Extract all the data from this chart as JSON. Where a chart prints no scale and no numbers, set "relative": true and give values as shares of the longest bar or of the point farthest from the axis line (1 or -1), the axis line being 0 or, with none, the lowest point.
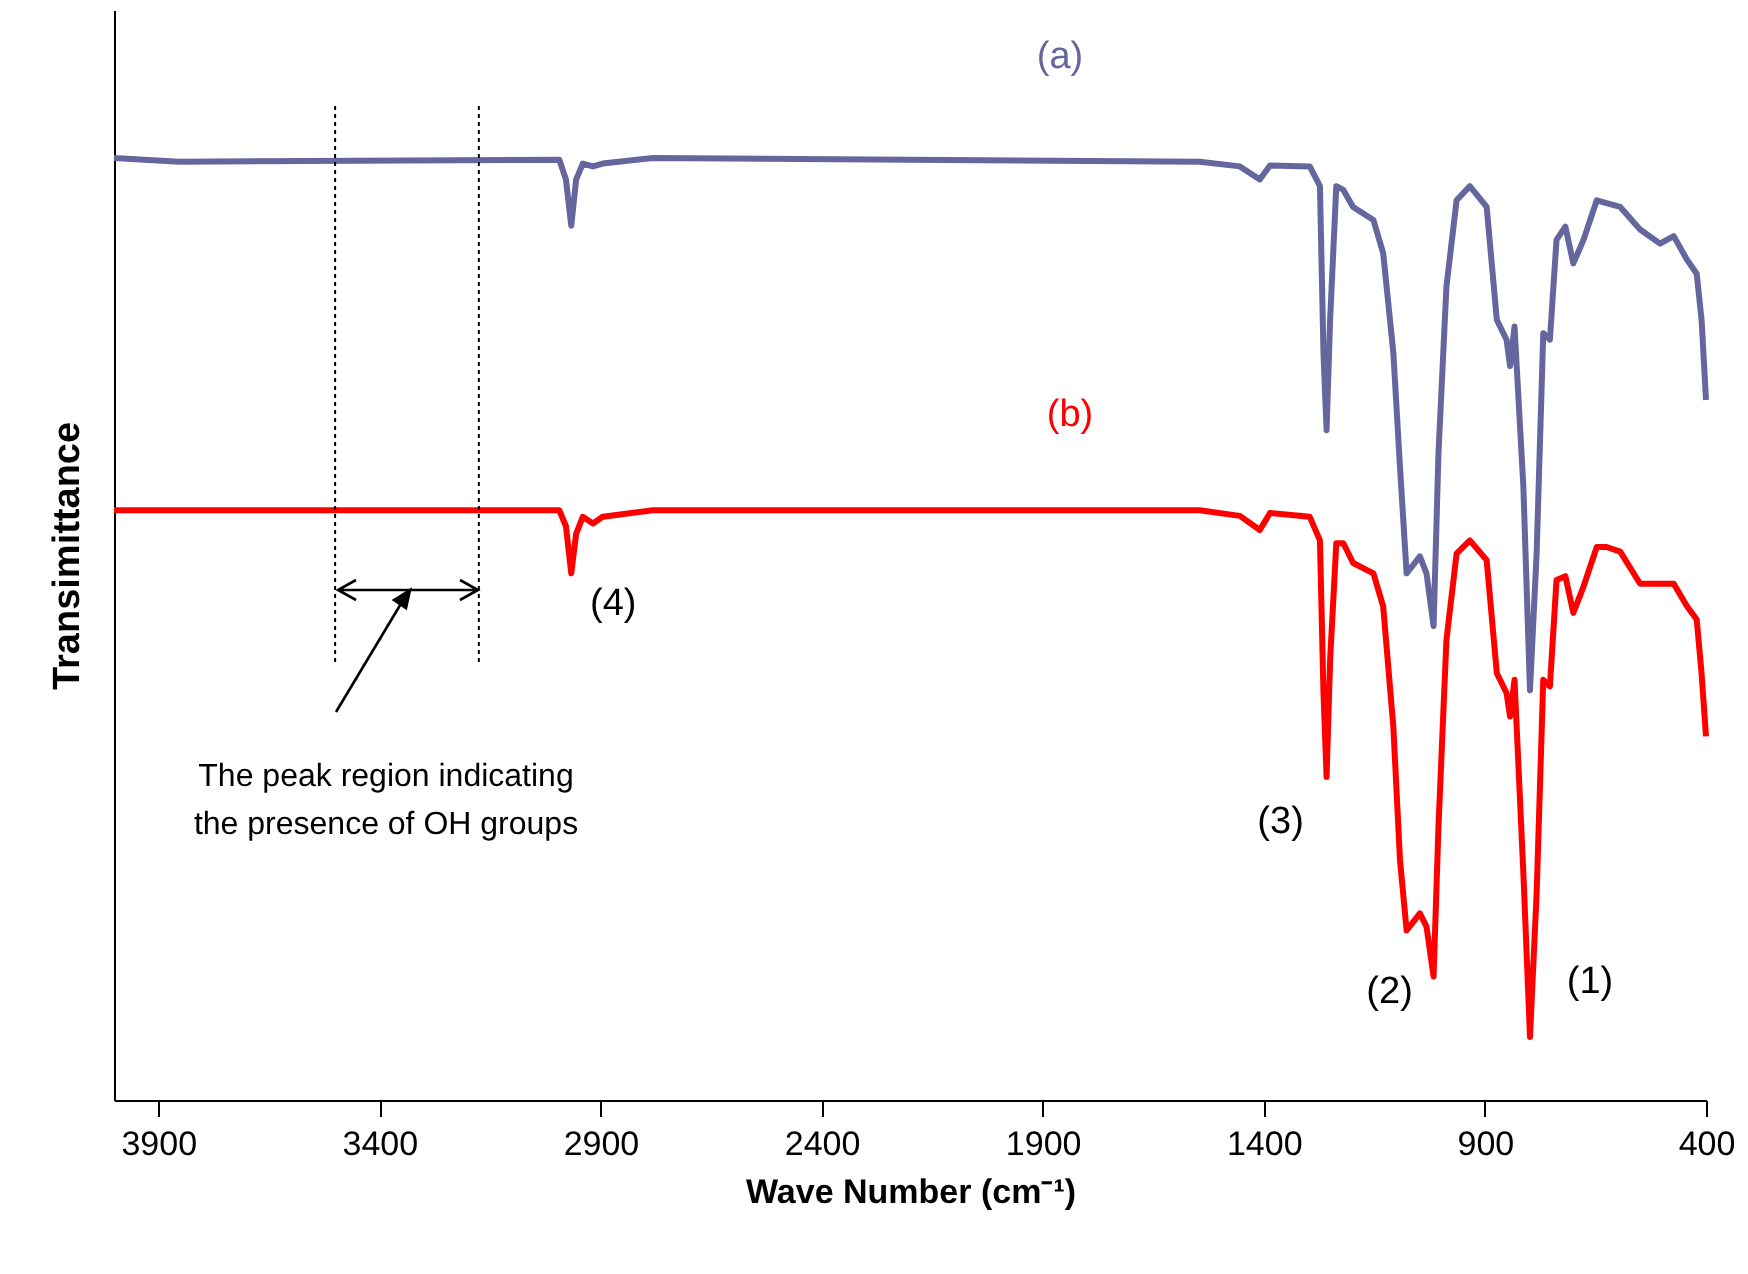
{
  "chart_data": {
    "type": "line",
    "relative": true,
    "xlabel": "Wave Number  (cm⁻¹)",
    "ylabel": "Transimittance",
    "xlim": [
      4000,
      400
    ],
    "xticks": [
      3900,
      3400,
      2900,
      2400,
      1900,
      1400,
      900,
      400
    ],
    "tick_labels": "x",
    "grid": false,
    "line_style": "solid",
    "marker": "none",
    "x": [
      4000,
      3853,
      2993,
      2978,
      2966,
      2955,
      2940,
      2917,
      2895,
      2782,
      1545,
      1454,
      1409,
      1386,
      1296,
      1273,
      1265,
      1258,
      1250,
      1236,
      1220,
      1198,
      1152,
      1130,
      1107,
      1092,
      1077,
      1047,
      1032,
      1016,
      1005,
      987,
      964,
      934,
      896,
      873,
      851,
      843,
      833,
      813,
      798,
      783,
      768,
      753,
      738,
      718,
      700,
      677,
      647,
      625,
      594,
      549,
      504,
      473,
      443,
      421,
      410,
      400
    ],
    "series": [
      {
        "name": "(a)",
        "color": "#66669e",
        "values": [
          1.0,
          0.996,
          0.998,
          0.977,
          0.928,
          0.977,
          0.994,
          0.991,
          0.994,
          1.0,
          0.996,
          0.991,
          0.977,
          0.992,
          0.991,
          0.97,
          0.793,
          0.711,
          0.828,
          0.97,
          0.966,
          0.948,
          0.934,
          0.899,
          0.793,
          0.672,
          0.559,
          0.577,
          0.559,
          0.503,
          0.686,
          0.863,
          0.955,
          0.97,
          0.948,
          0.828,
          0.807,
          0.779,
          0.821,
          0.651,
          0.435,
          0.58,
          0.814,
          0.807,
          0.913,
          0.927,
          0.888,
          0.913,
          0.955,
          0.952,
          0.948,
          0.924,
          0.909,
          0.917,
          0.892,
          0.877,
          0.828,
          0.743
        ]
      },
      {
        "name": "(b)",
        "color": "#ff0000",
        "values": [
          0.626,
          0.626,
          0.626,
          0.609,
          0.559,
          0.601,
          0.619,
          0.612,
          0.619,
          0.626,
          0.626,
          0.62,
          0.605,
          0.623,
          0.619,
          0.594,
          0.432,
          0.343,
          0.467,
          0.591,
          0.591,
          0.57,
          0.559,
          0.524,
          0.396,
          0.255,
          0.18,
          0.198,
          0.184,
          0.131,
          0.29,
          0.488,
          0.58,
          0.594,
          0.573,
          0.453,
          0.432,
          0.407,
          0.446,
          0.241,
          0.067,
          0.219,
          0.446,
          0.439,
          0.552,
          0.556,
          0.517,
          0.545,
          0.587,
          0.587,
          0.582,
          0.548,
          0.548,
          0.548,
          0.524,
          0.51,
          0.453,
          0.386
        ]
      }
    ],
    "ref_lines": [
      {
        "axis": "x",
        "value": 3500,
        "color": "#000000",
        "line_style": "dotted"
      },
      {
        "axis": "x",
        "value": 3175,
        "color": "#000000",
        "line_style": "dotted"
      }
    ],
    "annotations": [
      {
        "text": "(4)",
        "x": 2966,
        "y": 0.559
      },
      {
        "text": "(3)",
        "x": 1258,
        "y": 0.343
      },
      {
        "text": "(2)",
        "x": 1016,
        "y": 0.131
      },
      {
        "text": "(1)",
        "x": 798,
        "y": 0.067
      },
      "The peak region indicating the presence of OH groups"
    ]
  }
}
